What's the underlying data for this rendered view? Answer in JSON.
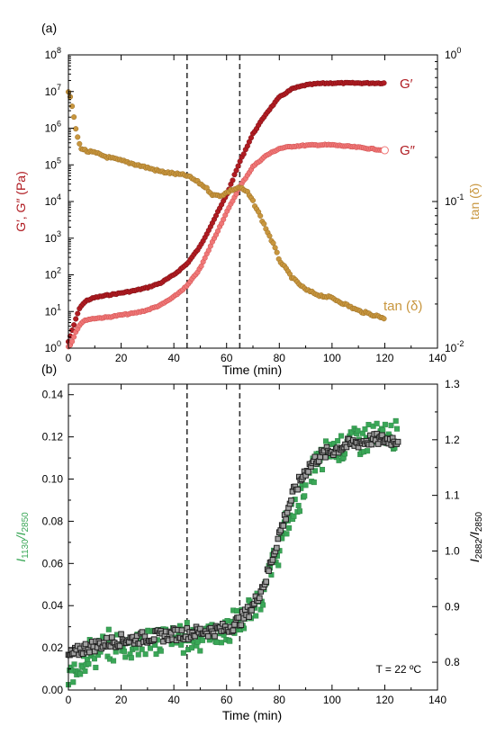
{
  "colors": {
    "g_prime": "#b01c22",
    "g_double_prime": "#f07878",
    "tan_delta": "#c8963e",
    "i1130": "#3aa757",
    "i2882": "#a0a0a0",
    "i2882_edge": "#202020",
    "dashed": "#333333"
  },
  "chart_data": [
    {
      "type": "line",
      "panel_label": "(a)",
      "xlabel": "Time (min)",
      "xlim": [
        0,
        140
      ],
      "xticks": [
        "0",
        "20",
        "40",
        "60",
        "80",
        "100",
        "120",
        "140"
      ],
      "ylabel": "G′, G″ (Pa)",
      "yscale": "log",
      "ylim": [
        1,
        100000000
      ],
      "yticks": [
        {
          "base": "10",
          "exp": "0"
        },
        {
          "base": "10",
          "exp": "1"
        },
        {
          "base": "10",
          "exp": "2"
        },
        {
          "base": "10",
          "exp": "3"
        },
        {
          "base": "10",
          "exp": "4"
        },
        {
          "base": "10",
          "exp": "5"
        },
        {
          "base": "10",
          "exp": "6"
        },
        {
          "base": "10",
          "exp": "7"
        },
        {
          "base": "10",
          "exp": "8"
        }
      ],
      "y2label": "tan (δ)",
      "y2scale": "log",
      "y2lim": [
        0.01,
        1
      ],
      "y2ticks": [
        {
          "base": "10",
          "exp": "0"
        },
        {
          "base": "10",
          "exp": "-1"
        },
        {
          "base": "10",
          "exp": "-2"
        }
      ],
      "vlines": [
        45,
        65
      ],
      "series": [
        {
          "name": "G′",
          "axis": "left",
          "x": [
            0,
            1,
            2,
            3,
            4,
            5,
            7,
            10,
            15,
            20,
            25,
            30,
            35,
            40,
            45,
            50,
            55,
            60,
            65,
            70,
            75,
            80,
            85,
            90,
            95,
            100,
            110,
            120
          ],
          "y": [
            1.5,
            2.5,
            4,
            7,
            11,
            15,
            20,
            24,
            28,
            32,
            37,
            45,
            60,
            100,
            200,
            600,
            3000,
            15000,
            120000,
            700000,
            2500000,
            7000000,
            12000000,
            15000000,
            16500000,
            17000000,
            17000000,
            17000000
          ]
        },
        {
          "name": "G″",
          "axis": "left",
          "x": [
            0,
            1,
            2,
            3,
            4,
            5,
            7,
            10,
            15,
            20,
            25,
            30,
            35,
            40,
            45,
            50,
            55,
            60,
            65,
            70,
            75,
            80,
            85,
            90,
            95,
            100,
            110,
            120
          ],
          "y": [
            1.1,
            1.3,
            2,
            3,
            4,
            5,
            6,
            6.5,
            7,
            8,
            9,
            11,
            15,
            25,
            50,
            150,
            900,
            5000,
            25000,
            90000,
            180000,
            280000,
            320000,
            340000,
            350000,
            350000,
            300000,
            250000
          ]
        },
        {
          "name": "tan (δ)",
          "axis": "right",
          "x": [
            0,
            1,
            2,
            3,
            4,
            5,
            7,
            10,
            15,
            20,
            25,
            30,
            35,
            40,
            45,
            48,
            52,
            55,
            58,
            62,
            65,
            68,
            70,
            72,
            75,
            78,
            80,
            85,
            90,
            95,
            100,
            110,
            120
          ],
          "y": [
            0.55,
            0.5,
            0.38,
            0.3,
            0.25,
            0.23,
            0.22,
            0.215,
            0.2,
            0.19,
            0.18,
            0.17,
            0.16,
            0.155,
            0.15,
            0.14,
            0.125,
            0.11,
            0.11,
            0.12,
            0.125,
            0.115,
            0.1,
            0.085,
            0.065,
            0.05,
            0.04,
            0.03,
            0.025,
            0.023,
            0.022,
            0.018,
            0.016
          ]
        }
      ]
    },
    {
      "type": "scatter",
      "panel_label": "(b)",
      "xlabel": "Time (min)",
      "xlim": [
        0,
        140
      ],
      "xticks": [
        "0",
        "20",
        "40",
        "60",
        "80",
        "100",
        "120",
        "140"
      ],
      "ylabel": {
        "main": "I",
        "sub1": "1130",
        "sep": "/I",
        "sub2": "2850"
      },
      "ylim": [
        0,
        0.145
      ],
      "yticks": [
        "0.00",
        "0.02",
        "0.04",
        "0.06",
        "0.08",
        "0.10",
        "0.12",
        "0.14"
      ],
      "y2label": {
        "main": "I",
        "sub1": "2882",
        "sep": "/I",
        "sub2": "2850"
      },
      "y2lim": [
        0.75,
        1.3
      ],
      "y2ticks": [
        "0.8",
        "0.9",
        "1.0",
        "1.1",
        "1.2",
        "1.3"
      ],
      "vlines": [
        45,
        65
      ],
      "annotation": "T = 22 ºC",
      "series": [
        {
          "name": "I1130/I2850",
          "axis": "left",
          "x": [
            0,
            2,
            4,
            6,
            10,
            15,
            20,
            25,
            30,
            35,
            40,
            45,
            50,
            55,
            60,
            65,
            70,
            75,
            80,
            85,
            90,
            95,
            100,
            105,
            110,
            115,
            120,
            125
          ],
          "y": [
            0.003,
            0.008,
            0.013,
            0.016,
            0.018,
            0.02,
            0.021,
            0.022,
            0.023,
            0.024,
            0.025,
            0.025,
            0.026,
            0.027,
            0.028,
            0.032,
            0.038,
            0.05,
            0.068,
            0.085,
            0.098,
            0.108,
            0.114,
            0.117,
            0.119,
            0.12,
            0.12,
            0.121
          ]
        },
        {
          "name": "I2882/I2850",
          "axis": "right",
          "x": [
            0,
            2,
            4,
            6,
            10,
            15,
            20,
            25,
            30,
            35,
            40,
            45,
            50,
            55,
            60,
            65,
            70,
            75,
            80,
            85,
            90,
            95,
            100,
            105,
            110,
            115,
            120,
            125
          ],
          "y": [
            0.81,
            0.815,
            0.82,
            0.825,
            0.83,
            0.835,
            0.84,
            0.842,
            0.845,
            0.847,
            0.85,
            0.852,
            0.855,
            0.857,
            0.86,
            0.875,
            0.9,
            0.95,
            1.03,
            1.1,
            1.145,
            1.17,
            1.18,
            1.19,
            1.195,
            1.2,
            1.2,
            1.2
          ]
        }
      ]
    }
  ]
}
